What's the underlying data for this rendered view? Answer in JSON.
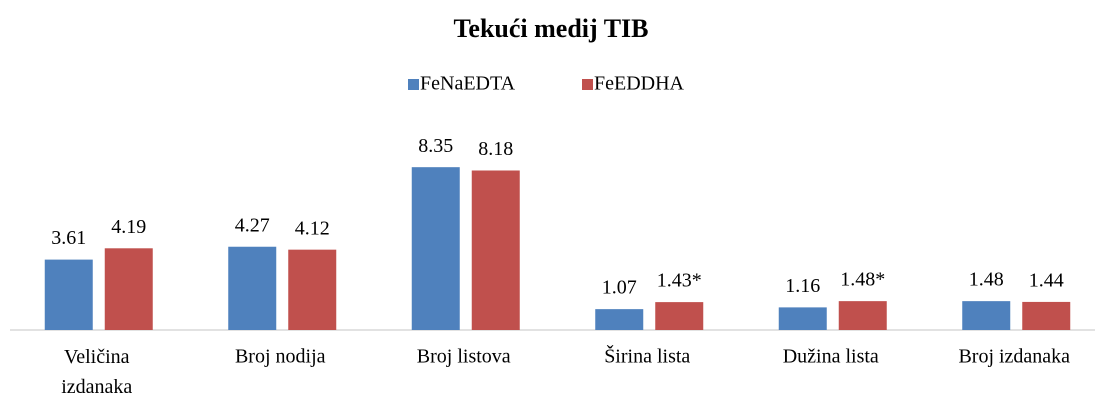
{
  "chart_data": {
    "type": "bar",
    "title": "Tekući medij TIB",
    "categories": [
      "Veličina izdanaka",
      "Broj nodija",
      "Broj listova",
      "Širina lista",
      "Dužina lista",
      "Broj izdanaka"
    ],
    "series": [
      {
        "name": "FeNaEDTA",
        "color": "#4f81bd",
        "values": [
          3.61,
          4.27,
          8.35,
          1.07,
          1.16,
          1.48
        ]
      },
      {
        "name": "FeEDDHA",
        "color": "#c0504d",
        "values": [
          4.19,
          4.12,
          8.18,
          1.43,
          1.48,
          1.44
        ],
        "value_labels": [
          "4.19",
          "4.12",
          "8.18",
          "1.43*",
          "1.48*",
          "1.44"
        ],
        "value_label_colors": [
          "#000000",
          "#000000",
          "#000000",
          "#ff0000",
          "#ff0000",
          "#000000"
        ]
      }
    ],
    "ylim": [
      0,
      10
    ],
    "legend": "top"
  }
}
